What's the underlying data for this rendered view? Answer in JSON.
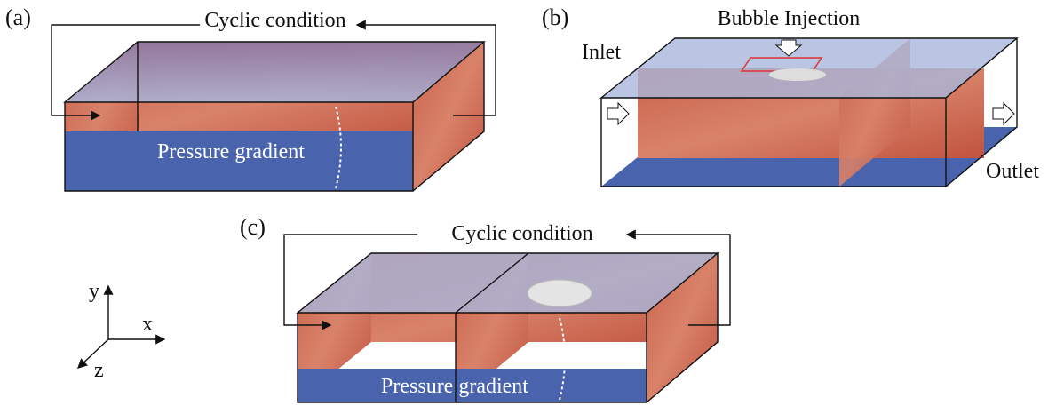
{
  "panels": [
    {
      "label": "(a)",
      "top_note": "Cyclic condition",
      "inner_note": "Pressure gradient"
    },
    {
      "label": "(b)",
      "top_note": "Bubble Injection",
      "inlet": "Inlet",
      "outlet": "Outlet"
    },
    {
      "label": "(c)",
      "top_note": "Cyclic condition",
      "inner_note": "Pressure gradient"
    }
  ],
  "axes": {
    "y": "y",
    "x": "x",
    "z": "z"
  }
}
